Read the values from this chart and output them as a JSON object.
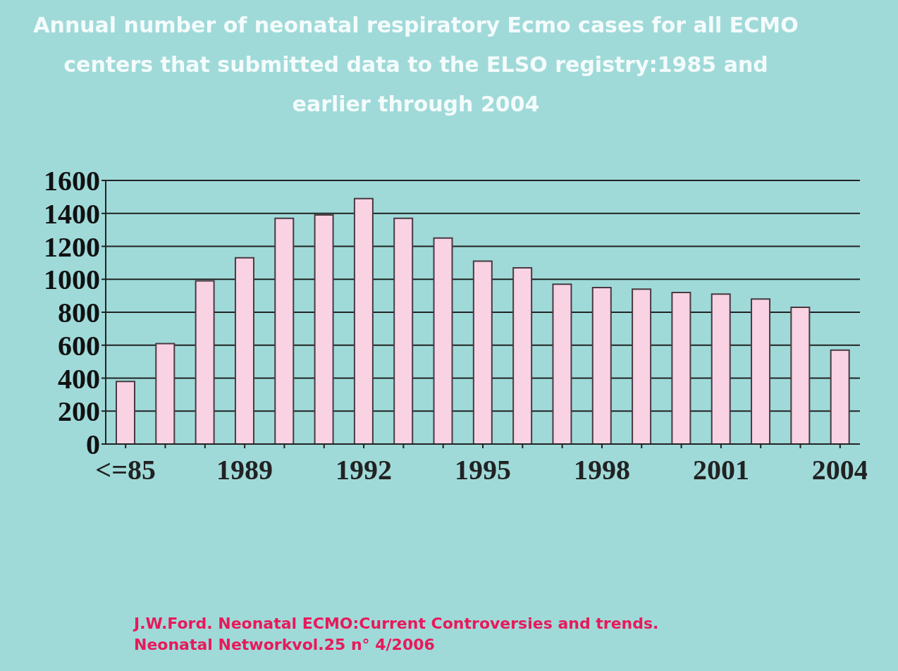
{
  "chart_data": {
    "type": "bar",
    "title": "Annual number of neonatal respiratory Ecmo cases for all ECMO centers that submitted data to the ELSO registry:1985 and earlier through 2004",
    "categories": [
      "<=85",
      null,
      null,
      "1989",
      null,
      null,
      "1992",
      null,
      null,
      "1995",
      null,
      null,
      "1998",
      null,
      null,
      "2001",
      null,
      null,
      "2004"
    ],
    "values": [
      380,
      610,
      990,
      1130,
      1370,
      1390,
      1490,
      1370,
      1250,
      1110,
      1070,
      970,
      950,
      940,
      920,
      910,
      880,
      830,
      570
    ],
    "color": "#f9d3e3",
    "ylim": [
      0,
      1600
    ],
    "yticks": [
      0,
      200,
      400,
      600,
      800,
      1000,
      1200,
      1400,
      1600
    ],
    "grid": "y",
    "annotations": [
      "J.W.Ford. Neonatal ECMO:Current Controversies and trends.",
      "Neonatal Networkvol.25 n° 4/2006"
    ]
  }
}
